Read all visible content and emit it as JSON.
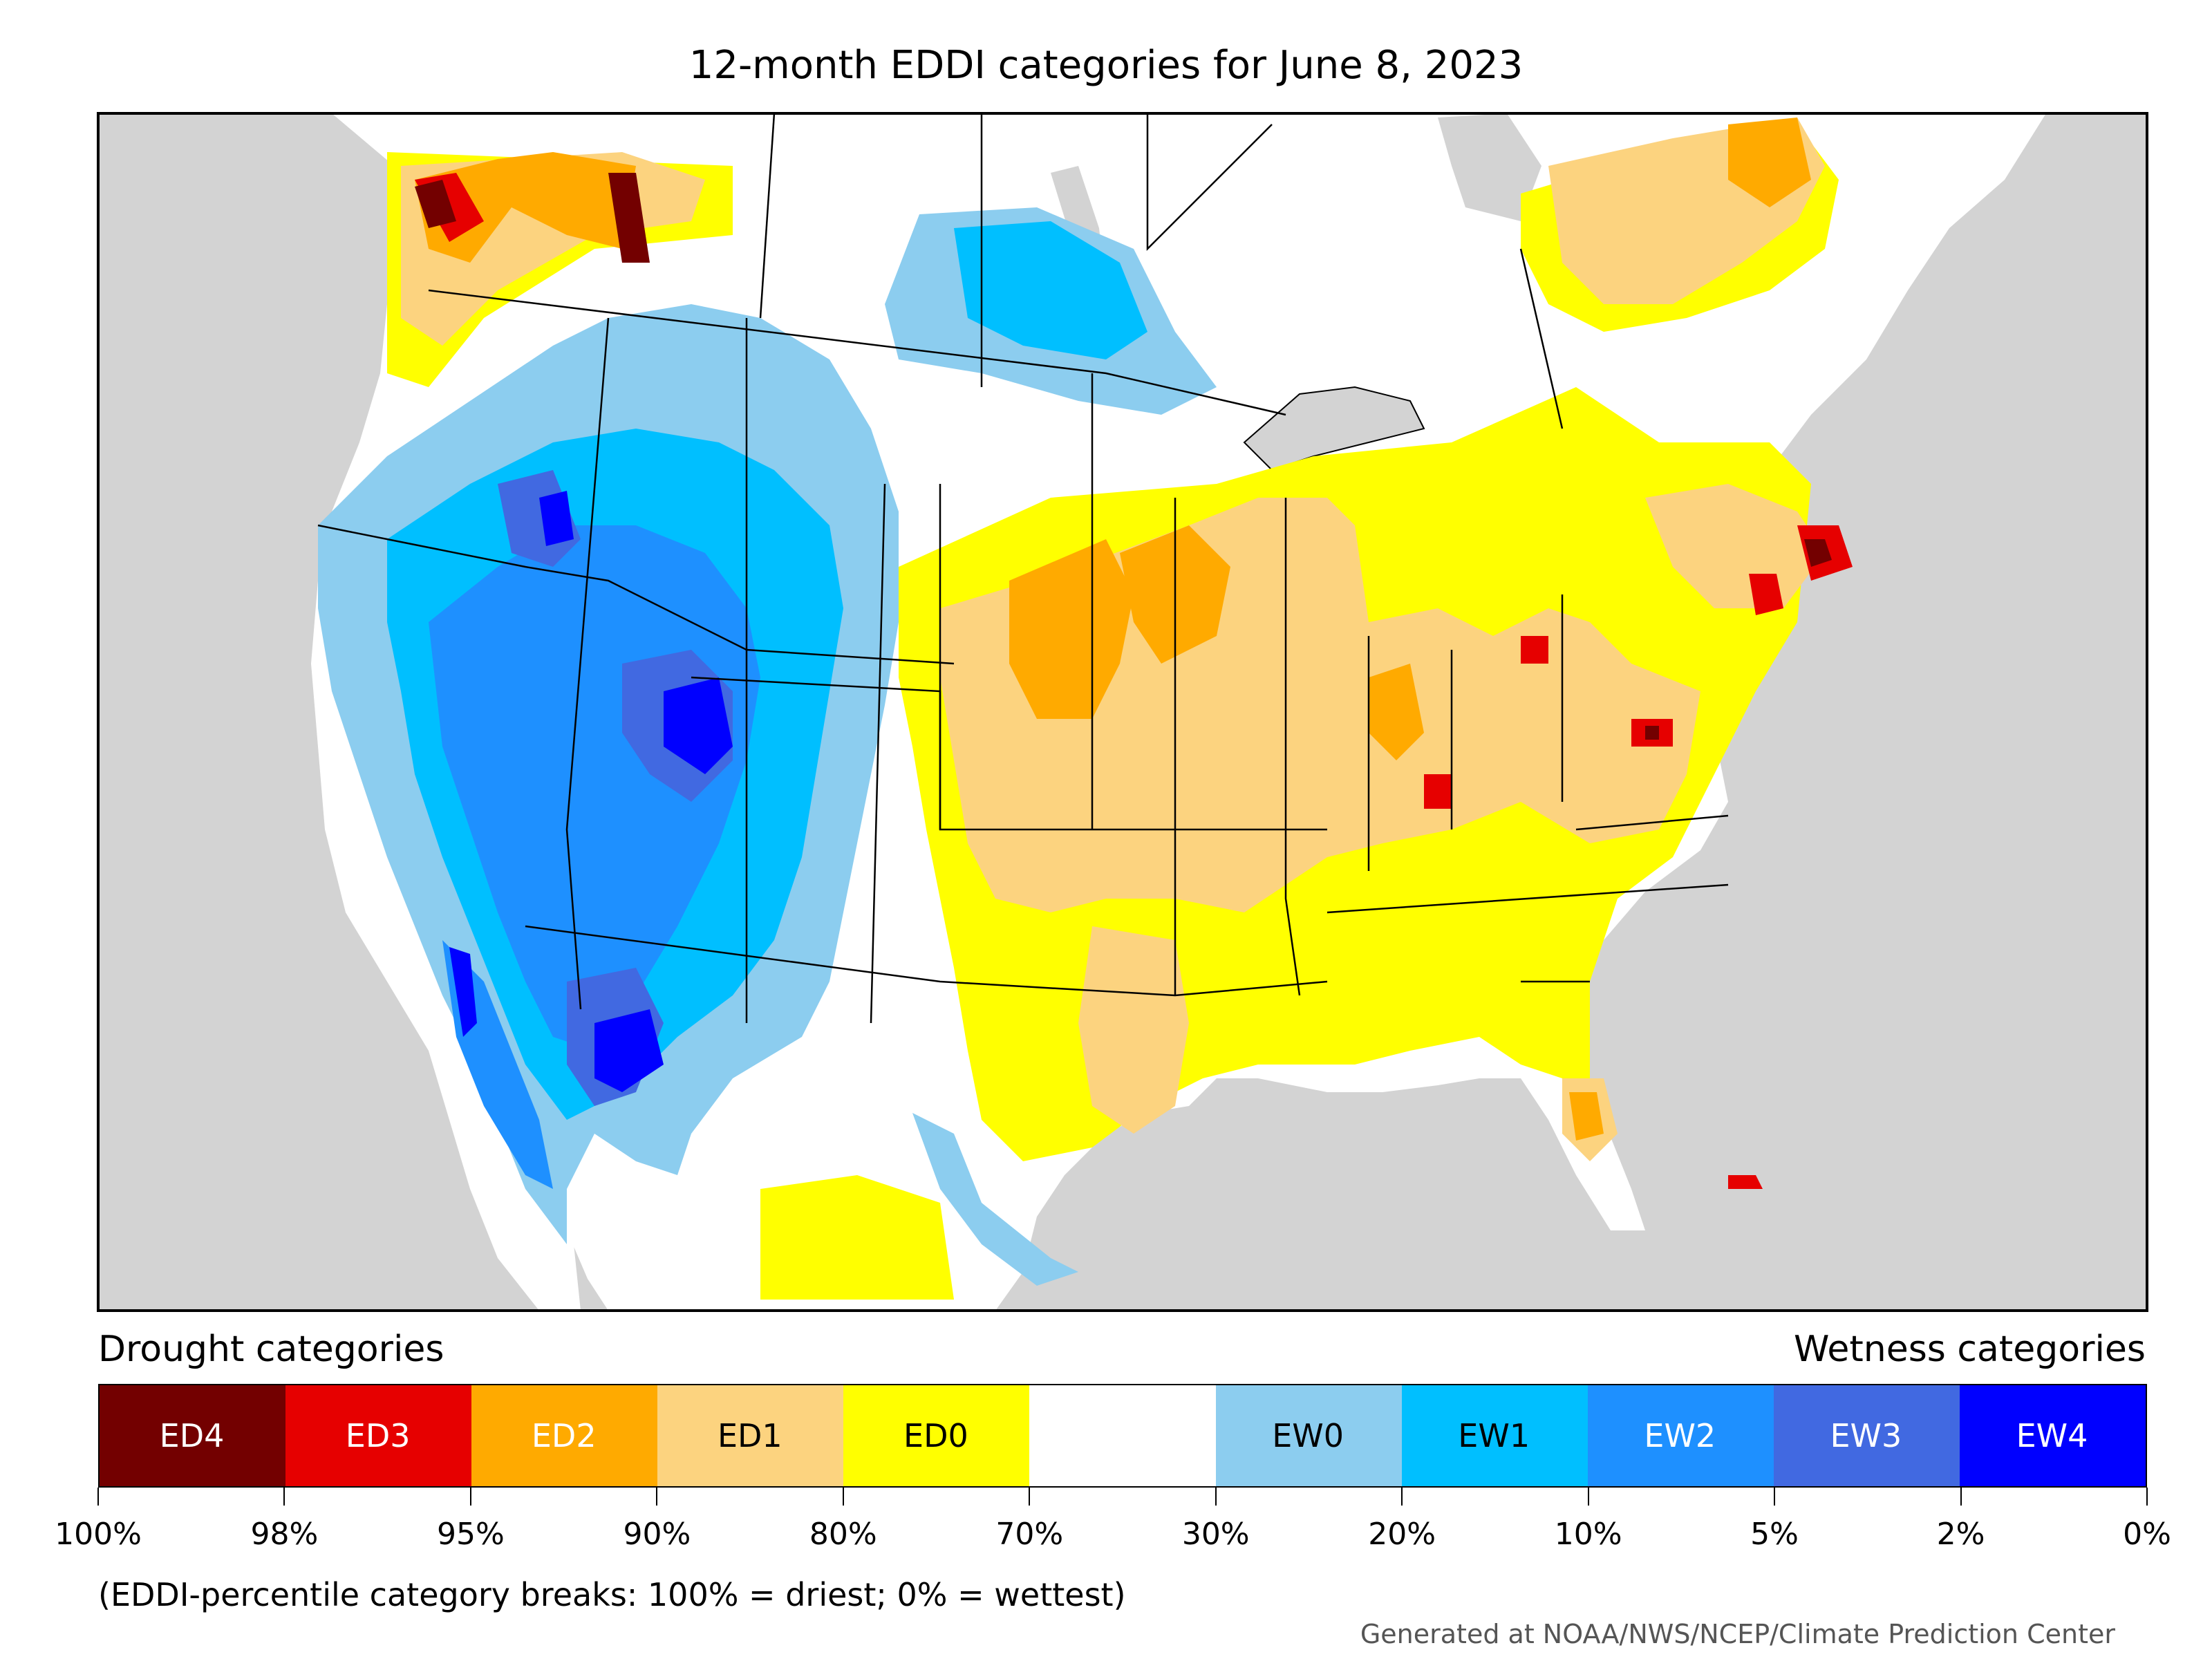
{
  "title": "12-month EDDI categories for June 8, 2023",
  "legend": {
    "drought_heading": "Drought categories",
    "wetness_heading": "Wetness categories",
    "categories": [
      {
        "label": "ED4",
        "color": "#730000",
        "text_color": "#ffffff"
      },
      {
        "label": "ED3",
        "color": "#e60000",
        "text_color": "#ffffff"
      },
      {
        "label": "ED2",
        "color": "#ffaa00",
        "text_color": "#ffffff"
      },
      {
        "label": "ED1",
        "color": "#fcd37f",
        "text_color": "#000000"
      },
      {
        "label": "ED0",
        "color": "#ffff00",
        "text_color": "#000000"
      },
      {
        "label": "",
        "color": "#ffffff",
        "text_color": "#000000"
      },
      {
        "label": "EW0",
        "color": "#8ccdef",
        "text_color": "#000000"
      },
      {
        "label": "EW1",
        "color": "#00bfff",
        "text_color": "#000000"
      },
      {
        "label": "EW2",
        "color": "#1e90ff",
        "text_color": "#ffffff"
      },
      {
        "label": "EW3",
        "color": "#4169e1",
        "text_color": "#ffffff"
      },
      {
        "label": "EW4",
        "color": "#0000ff",
        "text_color": "#ffffff"
      }
    ],
    "ticks": [
      "100%",
      "98%",
      "95%",
      "90%",
      "80%",
      "70%",
      "30%",
      "20%",
      "10%",
      "5%",
      "2%",
      "0%"
    ]
  },
  "footnote": "(EDDI-percentile category breaks: 100% = driest; 0% = wettest)",
  "credit": "Generated at NOAA/NWS/NCEP/Climate Prediction Center",
  "colors": {
    "background_land_outside": "#d3d3d3",
    "water": "#d3d3d3",
    "border": "#000000"
  }
}
